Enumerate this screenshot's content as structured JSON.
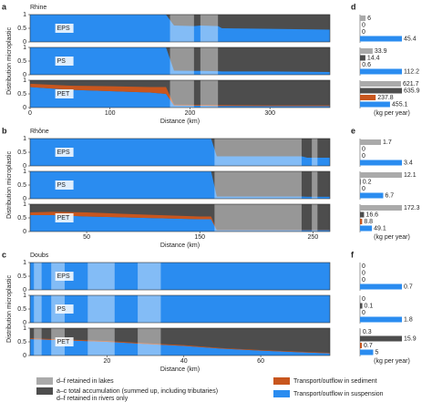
{
  "chart_data": [
    {
      "type": "area",
      "label": "a",
      "title": "Rhine",
      "xlabel": "Distance (km)",
      "ylabel": "Distribution microplastic",
      "xlim": [
        0,
        375
      ],
      "xticks": [
        0,
        100,
        200,
        300
      ],
      "ylim": [
        0,
        1
      ],
      "yticks": [
        0,
        0.5,
        1
      ],
      "lakes": [
        [
          175,
          205
        ],
        [
          213,
          235
        ]
      ],
      "x": [
        0,
        50,
        100,
        150,
        170,
        180,
        205,
        213,
        235,
        240,
        300,
        375
      ],
      "panels": [
        {
          "name": "EPS",
          "series": [
            {
              "color": "#2a8cf0",
              "values": [
                1,
                1,
                1,
                1,
                1,
                0.6,
                0.58,
                0.6,
                0.58,
                0.5,
                0.48,
                0.45
              ]
            }
          ]
        },
        {
          "name": "PS",
          "series": [
            {
              "color": "#2a8cf0",
              "values": [
                1,
                1,
                1,
                1,
                1,
                0.15,
                0.14,
                0.14,
                0.13,
                0.12,
                0.12,
                0.1
              ]
            }
          ]
        },
        {
          "name": "PET",
          "series": [
            {
              "color": "#2a8cf0",
              "values": [
                0.75,
                0.65,
                0.6,
                0.55,
                0.5,
                0.08,
                0.07,
                0.07,
                0.06,
                0.06,
                0.05,
                0.05
              ]
            },
            {
              "color": "#c8561e",
              "values": [
                0.12,
                0.15,
                0.18,
                0.2,
                0.25,
                0.03,
                0.03,
                0.03,
                0.03,
                0.03,
                0.03,
                0.03
              ]
            }
          ]
        }
      ]
    },
    {
      "type": "area",
      "label": "b",
      "title": "Rhône",
      "xlabel": "Distance (km)",
      "ylabel": "Distribution microplastic",
      "xlim": [
        0,
        265
      ],
      "xticks": [
        50,
        150,
        250
      ],
      "ylim": [
        0,
        1
      ],
      "yticks": [
        0,
        0.5,
        1
      ],
      "lakes": [
        [
          163,
          240
        ],
        [
          249,
          254
        ]
      ],
      "x": [
        0,
        20,
        50,
        100,
        150,
        160,
        165,
        240,
        245,
        250,
        255,
        265
      ],
      "panels": [
        {
          "name": "EPS",
          "series": [
            {
              "color": "#2a8cf0",
              "values": [
                1,
                1,
                1,
                1,
                1,
                1,
                0.35,
                0.35,
                0.3,
                0.3,
                0.3,
                0.3
              ]
            }
          ]
        },
        {
          "name": "PS",
          "series": [
            {
              "color": "#2a8cf0",
              "values": [
                1,
                1,
                1,
                1,
                1,
                1,
                0.08,
                0.08,
                0.07,
                0.07,
                0.07,
                0.07
              ]
            }
          ]
        },
        {
          "name": "PET",
          "series": [
            {
              "color": "#2a8cf0",
              "values": [
                0.6,
                0.6,
                0.55,
                0.5,
                0.45,
                0.45,
                0.05,
                0.05,
                0.05,
                0.05,
                0.05,
                0.05
              ]
            },
            {
              "color": "#c8561e",
              "values": [
                0.1,
                0.12,
                0.15,
                0.12,
                0.1,
                0.1,
                0.01,
                0.01,
                0.01,
                0.01,
                0.01,
                0.01
              ]
            }
          ]
        }
      ]
    },
    {
      "type": "area",
      "label": "c",
      "title": "Doubs",
      "xlabel": "Distance (km)",
      "ylabel": "Distribution microplastic",
      "xlim": [
        0,
        78
      ],
      "xticks": [
        20,
        40,
        60
      ],
      "ylim": [
        0,
        1
      ],
      "yticks": [
        0,
        0.5,
        1
      ],
      "lakes": [
        [
          1,
          3
        ],
        [
          5.5,
          9
        ],
        [
          15,
          22
        ],
        [
          28,
          34
        ]
      ],
      "x": [
        0,
        10,
        20,
        30,
        40,
        50,
        60,
        70,
        78
      ],
      "panels": [
        {
          "name": "EPS",
          "series": [
            {
              "color": "#2a8cf0",
              "values": [
                1,
                1,
                1,
                1,
                1,
                1,
                1,
                1,
                1
              ]
            }
          ]
        },
        {
          "name": "PS",
          "series": [
            {
              "color": "#2a8cf0",
              "values": [
                1,
                1,
                1,
                1,
                1,
                1,
                1,
                1,
                1
              ]
            }
          ]
        },
        {
          "name": "PET",
          "series": [
            {
              "color": "#2a8cf0",
              "values": [
                0.6,
                0.55,
                0.5,
                0.42,
                0.35,
                0.25,
                0.18,
                0.12,
                0.08
              ]
            },
            {
              "color": "#c8561e",
              "values": [
                0.03,
                0.03,
                0.03,
                0.03,
                0.03,
                0.02,
                0.02,
                0.02,
                0.02
              ]
            }
          ]
        }
      ]
    },
    {
      "type": "bar",
      "label": "d",
      "xlabel": "(kg per year)",
      "colors": [
        "#aaaaaa",
        "#4d4d4d",
        "#c8561e",
        "#2a8cf0"
      ],
      "groups": [
        [
          6,
          0,
          0,
          45.4
        ],
        [
          33.9,
          14.4,
          0.6,
          112.2
        ],
        [
          621.7,
          635.9,
          237.8,
          455.1
        ]
      ]
    },
    {
      "type": "bar",
      "label": "e",
      "xlabel": "(kg per year)",
      "colors": [
        "#aaaaaa",
        "#4d4d4d",
        "#c8561e",
        "#2a8cf0"
      ],
      "groups": [
        [
          1.7,
          0,
          0,
          3.4
        ],
        [
          12.1,
          0.2,
          0,
          6.7
        ],
        [
          172.3,
          16.6,
          8.8,
          49.1
        ]
      ]
    },
    {
      "type": "bar",
      "label": "f",
      "xlabel": "(kg per year)",
      "colors": [
        "#aaaaaa",
        "#4d4d4d",
        "#c8561e",
        "#2a8cf0"
      ],
      "groups": [
        [
          0,
          0,
          0,
          0.7
        ],
        [
          0,
          0.1,
          0,
          1.8
        ],
        [
          0.3,
          15.9,
          0.7,
          5
        ]
      ]
    }
  ],
  "legend": [
    {
      "color": "#aaaaaa",
      "lines": [
        "d–f retained in lakes"
      ]
    },
    {
      "color": "#4d4d4d",
      "lines": [
        "a–c total accumulation (summed up, including tributaries)",
        "d–f retained in rivers only"
      ]
    },
    {
      "color": "#c8561e",
      "lines": [
        "Transport/outflow in sediment"
      ]
    },
    {
      "color": "#2a8cf0",
      "lines": [
        "Transport/outflow in suspension"
      ]
    }
  ]
}
